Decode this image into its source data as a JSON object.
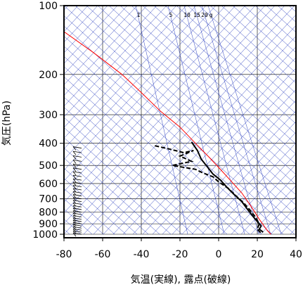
{
  "chart_data": {
    "type": "line",
    "title": "",
    "xlabel": "気温(実線), 露点(破線)",
    "ylabel": "気圧(hPa)",
    "xlim": [
      -80,
      40
    ],
    "ylim": [
      1000,
      100
    ],
    "y_scale": "log",
    "x_ticks": [
      "-80",
      "-60",
      "-40",
      "-20",
      "0",
      "20",
      "40"
    ],
    "y_ticks": [
      "100",
      "200",
      "300",
      "400",
      "500",
      "600",
      "700",
      "800",
      "900",
      "1000"
    ],
    "grid": true,
    "mixing_ratio_labels": [
      "1",
      "5",
      "10",
      "15",
      "20",
      "g"
    ],
    "series": [
      {
        "color": "#ff0000",
        "style": "solid",
        "points": [
          [
            -80,
            130
          ],
          [
            -65,
            160
          ],
          [
            -50,
            200
          ],
          [
            -40,
            240
          ],
          [
            -30,
            290
          ],
          [
            -20,
            340
          ],
          [
            -12,
            400
          ],
          [
            -5,
            460
          ],
          [
            0,
            510
          ],
          [
            6,
            580
          ],
          [
            12,
            660
          ],
          [
            17,
            760
          ],
          [
            21,
            860
          ],
          [
            25,
            960
          ],
          [
            27,
            1000
          ]
        ]
      },
      {
        "color": "#000000",
        "style": "solid",
        "points": [
          [
            -14,
            395
          ],
          [
            -11,
            430
          ],
          [
            -9,
            470
          ],
          [
            -6,
            505
          ],
          [
            -3,
            545
          ],
          [
            1,
            580
          ],
          [
            4,
            620
          ],
          [
            8,
            670
          ],
          [
            12,
            720
          ],
          [
            15,
            780
          ],
          [
            18,
            840
          ],
          [
            20,
            880
          ],
          [
            22,
            920
          ],
          [
            21,
            950
          ],
          [
            23,
            980
          ]
        ]
      },
      {
        "color": "#000000",
        "style": "dashed",
        "points": [
          [
            -33,
            410
          ],
          [
            -25,
            425
          ],
          [
            -18,
            440
          ],
          [
            -13,
            430
          ],
          [
            -20,
            455
          ],
          [
            -14,
            480
          ],
          [
            -24,
            500
          ],
          [
            -12,
            520
          ],
          [
            -8,
            540
          ],
          [
            -3,
            560
          ],
          [
            0,
            590
          ],
          [
            5,
            630
          ],
          [
            9,
            680
          ],
          [
            13,
            730
          ],
          [
            16,
            780
          ],
          [
            19,
            840
          ],
          [
            21,
            900
          ],
          [
            20,
            950
          ],
          [
            22,
            990
          ]
        ]
      }
    ],
    "wind_barb_levels": [
      420,
      440,
      460,
      480,
      500,
      520,
      540,
      560,
      580,
      600,
      620,
      640,
      660,
      680,
      700,
      720,
      740,
      760,
      780,
      800,
      820,
      840,
      860,
      880,
      900,
      920,
      940,
      960,
      980,
      1000
    ]
  }
}
